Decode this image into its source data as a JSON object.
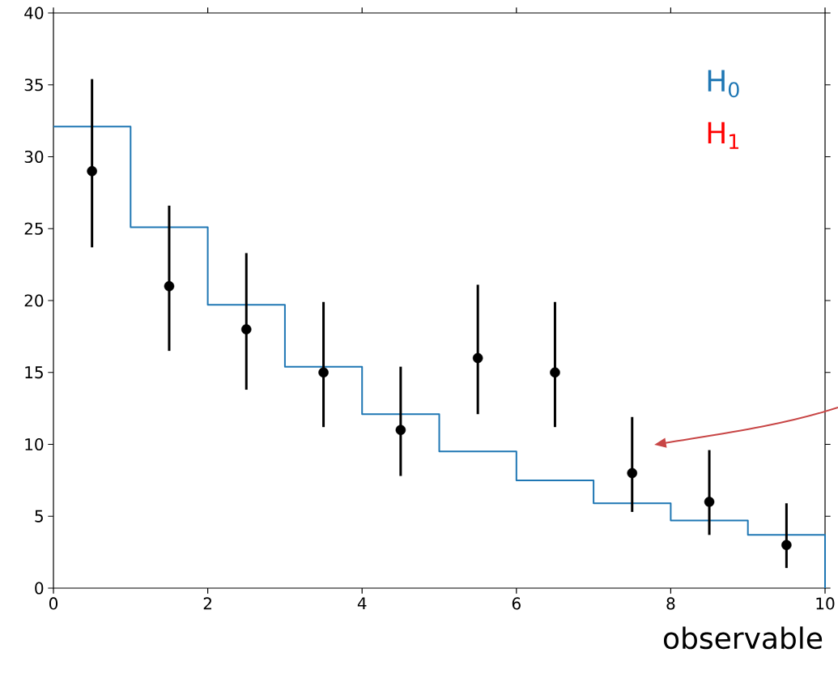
{
  "chart_data": {
    "type": "scatter",
    "xlabel": "observable",
    "xlim": [
      0,
      10
    ],
    "ylim": [
      0,
      40
    ],
    "xticks": [
      0,
      2,
      4,
      6,
      8,
      10
    ],
    "yticks": [
      0,
      5,
      10,
      15,
      20,
      25,
      30,
      35,
      40
    ],
    "series": [
      {
        "name": "H$_{0}$",
        "type": "histogram",
        "color": "#1f77b4",
        "bins": [
          0,
          1,
          2,
          3,
          4,
          5,
          6,
          7,
          8,
          9,
          10
        ],
        "values": [
          32.1,
          25.1,
          19.7,
          15.4,
          12.1,
          9.5,
          7.5,
          5.9,
          4.7,
          3.7
        ]
      },
      {
        "type": "scatter",
        "color": "#000000",
        "marker": "circle",
        "x": [
          0.5,
          1.5,
          2.5,
          3.5,
          4.5,
          5.5,
          6.5,
          7.5,
          8.5,
          9.5
        ],
        "values": [
          29,
          21,
          18,
          15,
          11,
          16,
          15,
          8,
          6,
          3
        ],
        "errors": [
          [
            23.7,
            35.4
          ],
          [
            16.5,
            26.6
          ],
          [
            13.8,
            23.3
          ],
          [
            11.2,
            19.9
          ],
          [
            7.8,
            15.4
          ],
          [
            12.1,
            21.1
          ],
          [
            11.2,
            19.9
          ],
          [
            5.3,
            11.9
          ],
          [
            3.7,
            9.6
          ],
          [
            1.4,
            5.9
          ]
        ]
      }
    ],
    "annotations": [
      "H$_{1}$"
    ]
  }
}
